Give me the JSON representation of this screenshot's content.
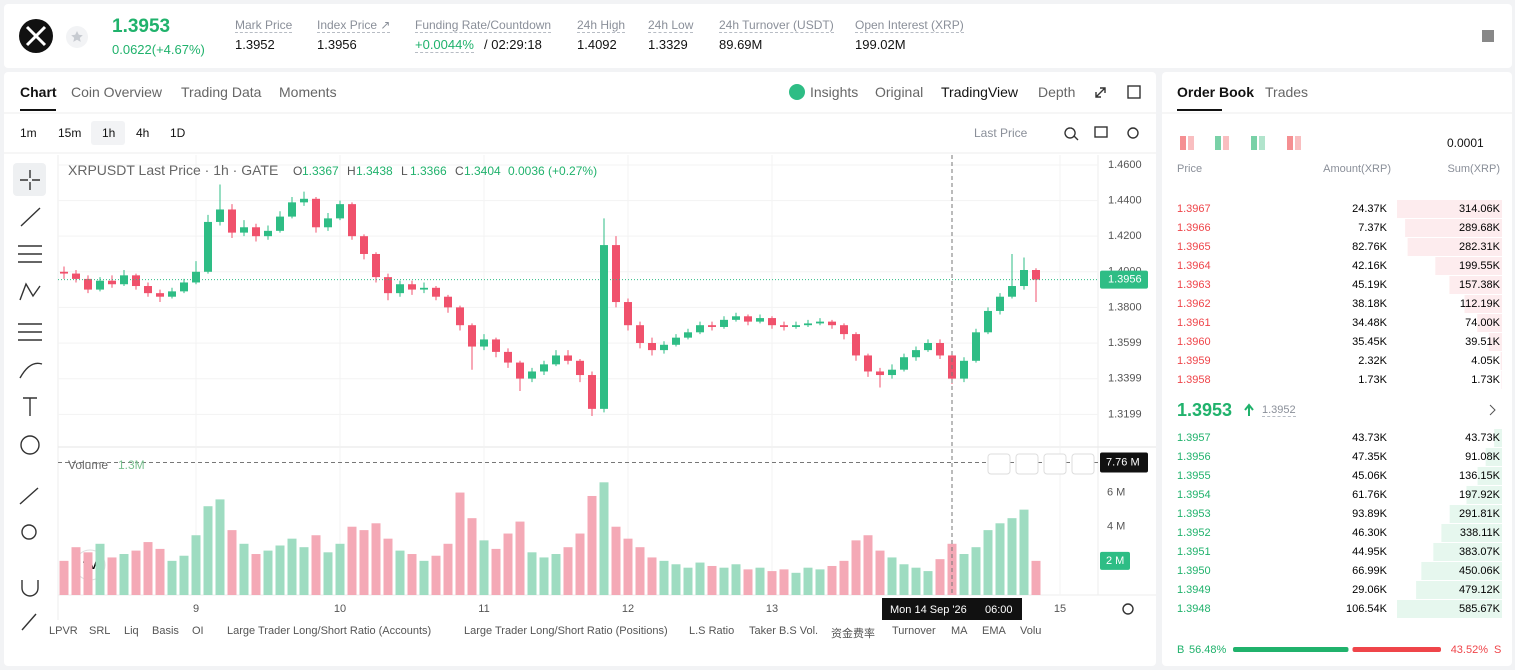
{
  "header": {
    "price": "1.3953",
    "change": "0.0622(+4.67%)",
    "stats": [
      {
        "label": "Mark Price",
        "value": "1.3952"
      },
      {
        "label": "Index Price ↗",
        "value": "1.3956"
      },
      {
        "label": "Funding Rate/Countdown",
        "value": "+0.0044%",
        "extra": "/ 02:29:18"
      },
      {
        "label": "24h High",
        "value": "1.4092"
      },
      {
        "label": "24h Low",
        "value": "1.3329"
      },
      {
        "label": "24h Turnover (USDT)",
        "value": "89.69M"
      },
      {
        "label": "Open Interest (XRP)",
        "value": "199.02M"
      }
    ]
  },
  "tabs": [
    "Chart",
    "Coin Overview",
    "Trading Data",
    "Moments"
  ],
  "views": [
    "Insights",
    "Original",
    "TradingView",
    "Depth"
  ],
  "intervals": [
    "1m",
    "15m",
    "1h",
    "4h",
    "1D"
  ],
  "price_type": "Last Price",
  "indicators": [
    "LPVR",
    "SRL",
    "Liq",
    "Basis",
    "OI",
    "Large Trader Long/Short Ratio (Accounts)",
    "Large Trader Long/Short Ratio (Positions)",
    "L.S Ratio",
    "Taker B.S Vol.",
    "资金费率",
    "Turnover",
    "MA",
    "EMA",
    "Volu"
  ],
  "chart_data": {
    "type": "candlestick",
    "title": "XRPUSDT Last Price · 1h · GATE",
    "legend": [
      {
        "key": "O",
        "value": "1.3367"
      },
      {
        "key": "H",
        "value": "1.3438"
      },
      {
        "key": "L",
        "value": "1.3366"
      },
      {
        "key": "C",
        "value": "1.3404"
      }
    ],
    "legend_change": "0.0036 (+0.27%)",
    "up_color": "#2ebd85",
    "down_color": "#f0516c",
    "up_volume_color": "#9edcc1",
    "down_volume_color": "#f4a9b6",
    "candles": [
      [
        1.4,
        1.403,
        1.396,
        1.399
      ],
      [
        1.399,
        1.401,
        1.394,
        1.396
      ],
      [
        1.396,
        1.398,
        1.388,
        1.39
      ],
      [
        1.39,
        1.397,
        1.389,
        1.395
      ],
      [
        1.395,
        1.398,
        1.391,
        1.393
      ],
      [
        1.393,
        1.401,
        1.392,
        1.398
      ],
      [
        1.398,
        1.399,
        1.39,
        1.392
      ],
      [
        1.392,
        1.394,
        1.386,
        1.388
      ],
      [
        1.388,
        1.39,
        1.383,
        1.386
      ],
      [
        1.386,
        1.391,
        1.385,
        1.389
      ],
      [
        1.389,
        1.396,
        1.388,
        1.394
      ],
      [
        1.394,
        1.406,
        1.393,
        1.4
      ],
      [
        1.4,
        1.432,
        1.399,
        1.428
      ],
      [
        1.428,
        1.449,
        1.426,
        1.435
      ],
      [
        1.435,
        1.438,
        1.419,
        1.422
      ],
      [
        1.422,
        1.429,
        1.42,
        1.425
      ],
      [
        1.425,
        1.427,
        1.417,
        1.42
      ],
      [
        1.42,
        1.426,
        1.418,
        1.423
      ],
      [
        1.423,
        1.434,
        1.422,
        1.431
      ],
      [
        1.431,
        1.442,
        1.43,
        1.439
      ],
      [
        1.439,
        1.445,
        1.437,
        1.441
      ],
      [
        1.441,
        1.442,
        1.422,
        1.425
      ],
      [
        1.425,
        1.433,
        1.423,
        1.43
      ],
      [
        1.43,
        1.44,
        1.429,
        1.438
      ],
      [
        1.438,
        1.439,
        1.418,
        1.42
      ],
      [
        1.42,
        1.421,
        1.407,
        1.41
      ],
      [
        1.41,
        1.411,
        1.394,
        1.397
      ],
      [
        1.397,
        1.399,
        1.384,
        1.388
      ],
      [
        1.388,
        1.395,
        1.386,
        1.393
      ],
      [
        1.393,
        1.395,
        1.387,
        1.39
      ],
      [
        1.39,
        1.394,
        1.388,
        1.391
      ],
      [
        1.391,
        1.392,
        1.384,
        1.386
      ],
      [
        1.386,
        1.387,
        1.377,
        1.38
      ],
      [
        1.38,
        1.381,
        1.367,
        1.37
      ],
      [
        1.37,
        1.371,
        1.345,
        1.358
      ],
      [
        1.358,
        1.365,
        1.356,
        1.362
      ],
      [
        1.362,
        1.363,
        1.352,
        1.355
      ],
      [
        1.355,
        1.357,
        1.346,
        1.349
      ],
      [
        1.349,
        1.35,
        1.333,
        1.34
      ],
      [
        1.34,
        1.346,
        1.338,
        1.344
      ],
      [
        1.344,
        1.35,
        1.342,
        1.348
      ],
      [
        1.348,
        1.356,
        1.347,
        1.353
      ],
      [
        1.353,
        1.356,
        1.348,
        1.35
      ],
      [
        1.35,
        1.351,
        1.338,
        1.342
      ],
      [
        1.342,
        1.344,
        1.319,
        1.323
      ],
      [
        1.323,
        1.43,
        1.321,
        1.415
      ],
      [
        1.415,
        1.42,
        1.38,
        1.383
      ],
      [
        1.383,
        1.385,
        1.367,
        1.37
      ],
      [
        1.37,
        1.372,
        1.357,
        1.36
      ],
      [
        1.36,
        1.363,
        1.353,
        1.356
      ],
      [
        1.356,
        1.361,
        1.354,
        1.359
      ],
      [
        1.359,
        1.365,
        1.358,
        1.363
      ],
      [
        1.363,
        1.368,
        1.362,
        1.366
      ],
      [
        1.366,
        1.372,
        1.365,
        1.37
      ],
      [
        1.37,
        1.372,
        1.367,
        1.369
      ],
      [
        1.369,
        1.375,
        1.368,
        1.373
      ],
      [
        1.373,
        1.377,
        1.372,
        1.375
      ],
      [
        1.375,
        1.376,
        1.37,
        1.372
      ],
      [
        1.372,
        1.376,
        1.371,
        1.374
      ],
      [
        1.374,
        1.375,
        1.368,
        1.37
      ],
      [
        1.37,
        1.372,
        1.367,
        1.369
      ],
      [
        1.369,
        1.372,
        1.368,
        1.37
      ],
      [
        1.37,
        1.373,
        1.369,
        1.371
      ],
      [
        1.371,
        1.374,
        1.37,
        1.372
      ],
      [
        1.372,
        1.373,
        1.368,
        1.37
      ],
      [
        1.37,
        1.371,
        1.362,
        1.365
      ],
      [
        1.365,
        1.366,
        1.35,
        1.353
      ],
      [
        1.353,
        1.354,
        1.341,
        1.344
      ],
      [
        1.344,
        1.346,
        1.335,
        1.342
      ],
      [
        1.342,
        1.348,
        1.34,
        1.345
      ],
      [
        1.345,
        1.354,
        1.344,
        1.352
      ],
      [
        1.352,
        1.358,
        1.35,
        1.356
      ],
      [
        1.356,
        1.362,
        1.355,
        1.36
      ],
      [
        1.36,
        1.362,
        1.351,
        1.353
      ],
      [
        1.353,
        1.354,
        1.337,
        1.34
      ],
      [
        1.34,
        1.352,
        1.338,
        1.35
      ],
      [
        1.35,
        1.368,
        1.349,
        1.366
      ],
      [
        1.366,
        1.38,
        1.365,
        1.378
      ],
      [
        1.378,
        1.388,
        1.376,
        1.386
      ],
      [
        1.386,
        1.41,
        1.385,
        1.392
      ],
      [
        1.392,
        1.408,
        1.39,
        1.401
      ],
      [
        1.401,
        1.402,
        1.383,
        1.3956
      ]
    ],
    "volumes": [
      2.0,
      2.8,
      2.5,
      3.0,
      2.2,
      2.4,
      2.6,
      3.1,
      2.7,
      2.0,
      2.3,
      3.5,
      5.2,
      5.6,
      3.8,
      3.0,
      2.4,
      2.6,
      2.9,
      3.3,
      2.8,
      3.5,
      2.5,
      3.0,
      4.0,
      3.8,
      4.2,
      3.3,
      2.6,
      2.4,
      2.0,
      2.3,
      3.0,
      6.0,
      4.5,
      3.2,
      2.7,
      3.6,
      4.3,
      2.5,
      2.2,
      2.4,
      2.8,
      3.6,
      5.8,
      6.6,
      4.0,
      3.3,
      2.8,
      2.2,
      2.0,
      1.8,
      1.6,
      1.9,
      1.7,
      1.6,
      1.8,
      1.5,
      1.6,
      1.4,
      1.5,
      1.3,
      1.6,
      1.5,
      1.7,
      2.0,
      3.2,
      3.5,
      2.6,
      2.2,
      1.8,
      1.6,
      1.4,
      2.1,
      3.0,
      2.4,
      2.8,
      3.8,
      4.2,
      4.5,
      5.0,
      2.0
    ],
    "ylim": [
      1.3027,
      1.4656
    ],
    "yticks": [
      {
        "value": 1.46,
        "label": "1.4600"
      },
      {
        "value": 1.44,
        "label": "1.4400"
      },
      {
        "value": 1.42,
        "label": "1.4200"
      },
      {
        "value": 1.4,
        "label": "1.4000"
      },
      {
        "value": 1.38,
        "label": "1.3800"
      },
      1.3599,
      1.3399,
      1.3199
    ],
    "volume_ylim": [
      0,
      8.2
    ],
    "volume_yticks": [
      {
        "value": 4,
        "label": "4 M"
      },
      {
        "value": 6,
        "label": "6 M"
      }
    ],
    "xticks": [
      {
        "value": 11,
        "label": "9"
      },
      {
        "value": 23,
        "label": "10"
      },
      {
        "value": 35,
        "label": "11"
      },
      {
        "value": 47,
        "label": "12"
      },
      {
        "value": 59,
        "label": "13"
      },
      {
        "value": 83,
        "label": "15"
      }
    ],
    "last_price": {
      "value": 1.3956,
      "label": "1.3956"
    },
    "last_volume": {
      "value": 2,
      "label": "2 M"
    },
    "volume_title": "Volume",
    "volume_ma": "1.3M",
    "crosshair": {
      "index": 74,
      "volume": 7.76,
      "volume_label": "7.76 M",
      "date_label": "Mon 14 Sep '26",
      "time_label": "06:00"
    }
  },
  "order_book": {
    "tabs": [
      "Order Book",
      "Trades"
    ],
    "precision": "0.0001",
    "columns": [
      "Price",
      "Amount(XRP)",
      "Sum(XRP)"
    ],
    "asks": {
      "prices": [
        "1.3967",
        "1.3966",
        "1.3965",
        "1.3964",
        "1.3963",
        "1.3962",
        "1.3961",
        "1.3960",
        "1.3959",
        "1.3958"
      ],
      "amounts": [
        "24.37K",
        "7.37K",
        "82.76K",
        "42.16K",
        "45.19K",
        "38.18K",
        "34.48K",
        "35.45K",
        "2.32K",
        "1.73K"
      ],
      "sums": [
        314.06,
        289.68,
        282.31,
        199.55,
        157.38,
        112.19,
        74,
        39.51,
        4.05,
        1.73
      ],
      "sum_labels": [
        "314.06K",
        "289.68K",
        "282.31K",
        "199.55K",
        "157.38K",
        "112.19K",
        "74.00K",
        "39.51K",
        "4.05K",
        "1.73K"
      ]
    },
    "mid_price": "1.3953",
    "mid_mark": "1.3952",
    "bids": {
      "prices": [
        "1.3957",
        "1.3956",
        "1.3955",
        "1.3954",
        "1.3953",
        "1.3952",
        "1.3951",
        "1.3950",
        "1.3949",
        "1.3948"
      ],
      "amounts": [
        "43.73K",
        "47.35K",
        "45.06K",
        "61.76K",
        "93.89K",
        "46.30K",
        "44.95K",
        "66.99K",
        "29.06K",
        "106.54K"
      ],
      "sums": [
        43.73,
        91.08,
        136.15,
        197.92,
        291.81,
        338.11,
        383.07,
        450.06,
        479.12,
        585.67
      ],
      "sum_labels": [
        "43.73K",
        "91.08K",
        "136.15K",
        "197.92K",
        "291.81K",
        "338.11K",
        "383.07K",
        "450.06K",
        "479.12K",
        "585.67K"
      ]
    },
    "buy_label": "B",
    "sell_label": "S",
    "buy_ratio": {
      "value": 56.48,
      "label": "56.48%"
    },
    "sell_ratio": {
      "value": 43.52,
      "label": "43.52%"
    }
  }
}
